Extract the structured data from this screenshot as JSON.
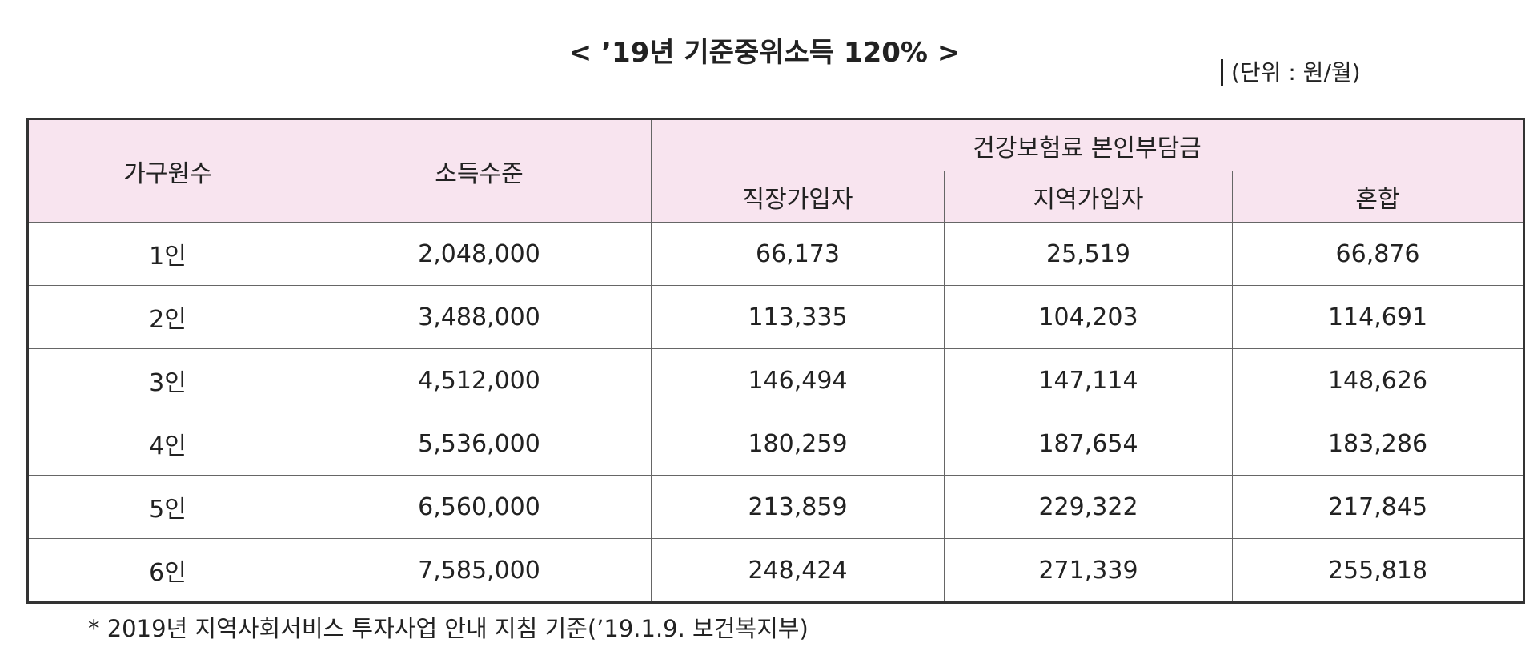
{
  "title": "< ’19년 기준중위소득 120% >",
  "unit": "(단위 : 원/월)",
  "table": {
    "header": [
      "가구원수",
      "소득수준",
      "건강보험료 본인부담금"
    ],
    "subheader": [
      "직장가입자",
      "지역가입자",
      "혼합"
    ],
    "rows": [
      [
        "1인",
        "2,048,000",
        "66,173",
        "25,519",
        "66,876"
      ],
      [
        "2인",
        "3,488,000",
        "113,335",
        "104,203",
        "114,691"
      ],
      [
        "3인",
        "4,512,000",
        "146,494",
        "147,114",
        "148,626"
      ],
      [
        "4인",
        "5,536,000",
        "180,259",
        "187,654",
        "183,286"
      ],
      [
        "5인",
        "6,560,000",
        "213,859",
        "229,322",
        "217,845"
      ],
      [
        "6인",
        "7,585,000",
        "248,424",
        "271,339",
        "255,818"
      ]
    ]
  },
  "footnote": "* 2019년 지역사회서비스 투자사업 안내 지침 기준(’19.1.9. 보건복지부)"
}
